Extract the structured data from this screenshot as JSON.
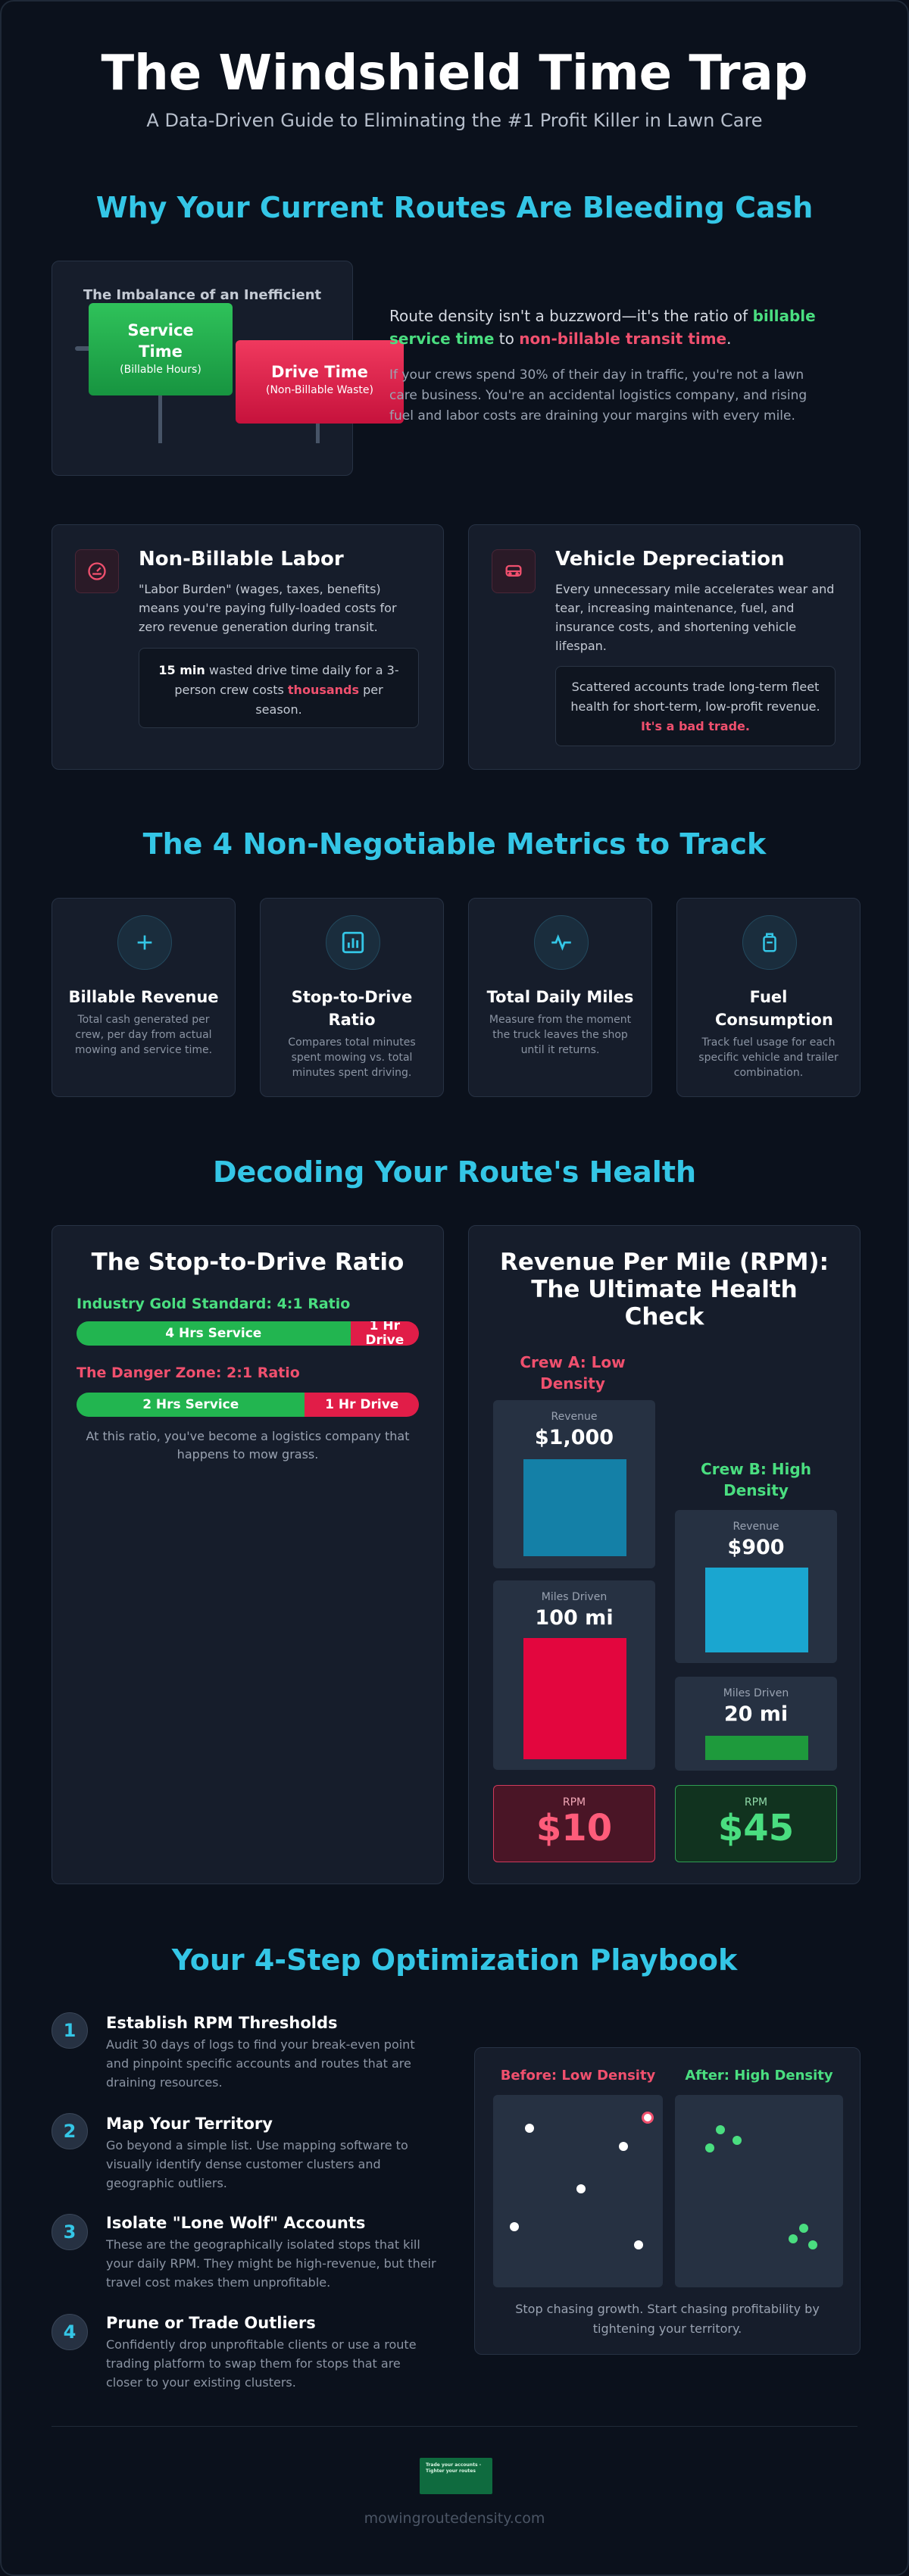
{
  "header": {
    "title": "The Windshield Time Trap",
    "subtitle": "A Data-Driven Guide to Eliminating the #1 Profit Killer in Lawn Care"
  },
  "section1": {
    "title": "Why Your Current Routes Are Bleeding Cash",
    "scale_title": "The Imbalance of an Inefficient",
    "service_label": "Service Time",
    "service_sub": "(Billable Hours)",
    "drive_label": "Drive Time",
    "drive_sub": "(Non-Billable Waste)",
    "lead_1": "Route density isn't a buzzword—it's the ratio of ",
    "lead_green": "billable service time",
    "lead_2": " to ",
    "lead_red": "non-billable transit time",
    "lead_3": ".",
    "body": "If your crews spend 30% of their day in traffic, you're not a lawn care business. You're an accidental logistics company, and rising fuel and labor costs are draining your margins with every mile."
  },
  "cost_cards": [
    {
      "icon": "gauge-icon",
      "title": "Non-Billable Labor",
      "body": "\"Labor Burden\" (wages, taxes, benefits) means you're paying fully-loaded costs for zero revenue generation during transit.",
      "callout_bold": "15 min",
      "callout_1": " wasted drive time daily for a 3-person crew costs ",
      "callout_red": "thousands",
      "callout_2": " per season."
    },
    {
      "icon": "truck-icon",
      "title": "Vehicle Depreciation",
      "body": "Every unnecessary mile accelerates wear and tear, increasing maintenance, fuel, and insurance costs, and shortening vehicle lifespan.",
      "callout_1": "Scattered accounts trade long-term fleet health for short-term, low-profit revenue. ",
      "callout_red": "It's a bad trade."
    }
  ],
  "metrics": {
    "title": "The 4 Non-Negotiable Metrics to Track",
    "items": [
      {
        "icon": "plus-icon",
        "title": "Billable Revenue",
        "desc": "Total cash generated per crew, per day from actual mowing and service time."
      },
      {
        "icon": "bar-chart-icon",
        "title": "Stop-to-Drive Ratio",
        "desc": "Compares total minutes spent mowing vs. total minutes spent driving."
      },
      {
        "icon": "pulse-icon",
        "title": "Total Daily Miles",
        "desc": "Measure from the moment the truck leaves the shop until it returns."
      },
      {
        "icon": "fuel-can-icon",
        "title": "Fuel Consumption",
        "desc": "Track fuel usage for each specific vehicle and trailer combination."
      }
    ]
  },
  "health": {
    "title": "Decoding Your Route's Health",
    "ratio": {
      "title": "The Stop-to-Drive Ratio",
      "gold_label": "Industry Gold Standard: 4:1 Ratio",
      "gold_service": "4 Hrs Service",
      "gold_drive": "1 Hr Drive",
      "gold_service_fraction": 0.8,
      "danger_label": "The Danger Zone: 2:1 Ratio",
      "danger_service": "2 Hrs Service",
      "danger_drive": "1 Hr Drive",
      "danger_service_fraction": 0.667,
      "note": "At this ratio, you've become a logistics company that happens to mow grass."
    },
    "rpm": {
      "title": "Revenue Per Mile (RPM): The Ultimate Health Check",
      "crew_a": {
        "name": "Crew A: Low Density",
        "revenue_label": "Revenue",
        "revenue": "$1,000",
        "miles_label": "Miles Driven",
        "miles": "100 mi",
        "rpm_label": "RPM",
        "rpm": "$10"
      },
      "crew_b": {
        "name": "Crew B: High Density",
        "revenue_label": "Revenue",
        "revenue": "$900",
        "miles_label": "Miles Driven",
        "miles": "20 mi",
        "rpm_label": "RPM",
        "rpm": "$45"
      }
    }
  },
  "playbook": {
    "title": "Your 4-Step Optimization Playbook",
    "steps": [
      {
        "num": "1",
        "title": "Establish RPM Thresholds",
        "desc": "Audit 30 days of logs to find your break-even point and pinpoint specific accounts and routes that are draining resources."
      },
      {
        "num": "2",
        "title": "Map Your Territory",
        "desc": "Go beyond a simple list. Use mapping software to visually identify dense customer clusters and geographic outliers."
      },
      {
        "num": "3",
        "title": "Isolate \"Lone Wolf\" Accounts",
        "desc": "These are the geographically isolated stops that kill your daily RPM. They might be high-revenue, but their travel cost makes them unprofitable."
      },
      {
        "num": "4",
        "title": "Prune or Trade Outliers",
        "desc": "Confidently drop unprofitable clients or use a route trading platform to swap them for stops that are closer to your existing clusters."
      }
    ],
    "before_label": "Before: Low Density",
    "after_label": "After: High Density",
    "caption": "Stop chasing growth. Start chasing profitability by tightening your territory."
  },
  "footer": {
    "logo_text": "Trade your accounts - Tighter your routes",
    "url": "mowingroutedensity.com"
  },
  "colors": {
    "accent": "#34c6e6",
    "green": "#22c55e",
    "red": "#e11d48",
    "background": "#0b111c"
  }
}
